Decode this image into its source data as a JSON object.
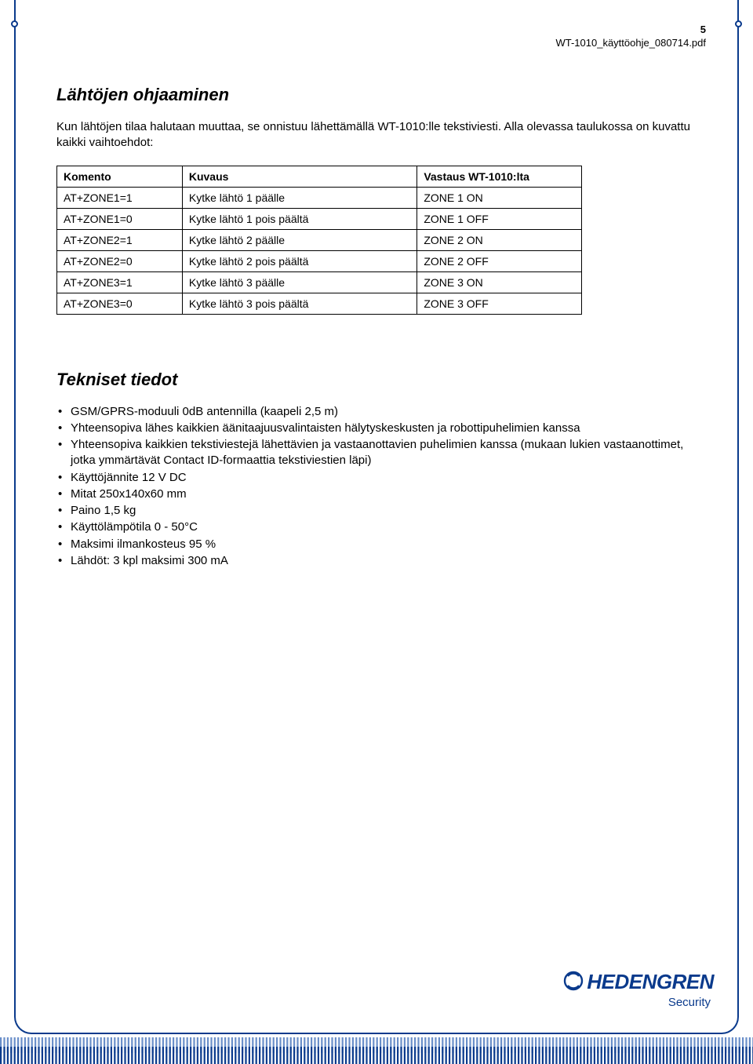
{
  "header": {
    "page_number": "5",
    "doc_ref": "WT-1010_käyttöohje_080714.pdf"
  },
  "section1": {
    "title": "Lähtöjen ohjaaminen",
    "para": "Kun lähtöjen tilaa halutaan muuttaa, se onnistuu lähettämällä WT-1010:lle tekstiviesti. Alla olevassa taulukossa on kuvattu kaikki vaihtoehdot:"
  },
  "table": {
    "headers": [
      "Komento",
      "Kuvaus",
      "Vastaus WT-1010:lta"
    ],
    "rows": [
      [
        "AT+ZONE1=1",
        "Kytke lähtö 1 päälle",
        "ZONE 1 ON"
      ],
      [
        "AT+ZONE1=0",
        "Kytke lähtö 1 pois päältä",
        "ZONE 1 OFF"
      ],
      [
        "AT+ZONE2=1",
        "Kytke lähtö 2 päälle",
        "ZONE 2 ON"
      ],
      [
        "AT+ZONE2=0",
        "Kytke lähtö 2 pois päältä",
        "ZONE 2 OFF"
      ],
      [
        "AT+ZONE3=1",
        "Kytke lähtö 3 päälle",
        "ZONE 3 ON"
      ],
      [
        "AT+ZONE3=0",
        "Kytke lähtö 3 pois päältä",
        "ZONE 3 OFF"
      ]
    ]
  },
  "section2": {
    "title": "Tekniset tiedot",
    "items": [
      "GSM/GPRS-moduuli 0dB antennilla (kaapeli 2,5 m)",
      "Yhteensopiva lähes kaikkien äänitaajuusvalintaisten hälytyskeskusten ja robottipuhelimien kanssa",
      "Yhteensopiva kaikkien tekstiviestejä lähettävien ja vastaanottavien puhelimien kanssa (mukaan lukien vastaanottimet, jotka ymmärtävät Contact ID-formaattia tekstiviestien läpi)",
      "Käyttöjännite 12 V DC",
      "Mitat 250x140x60 mm",
      "Paino 1,5 kg",
      "Käyttölämpötila 0 - 50°C",
      "Maksimi ilmankosteus 95 %",
      "Lähdöt: 3 kpl maksimi 300 mA"
    ]
  },
  "footer": {
    "brand": "HEDENGREN",
    "sub": "Security"
  },
  "colors": {
    "frame": "#0a3a8c",
    "text": "#000000",
    "brand": "#0a3a8c",
    "stripe_light": "#6a8fc9",
    "stripe_dark": "#0a3a8c"
  }
}
